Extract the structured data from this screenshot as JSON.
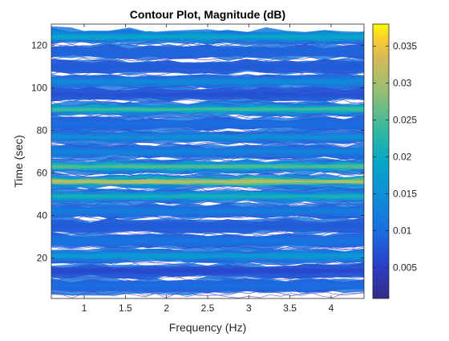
{
  "chart_data": {
    "type": "contour",
    "title": "Contour Plot, Magnitude (dB)",
    "xlabel": "Frequency (Hz)",
    "ylabel": "Time (sec)",
    "xlim": [
      0.6,
      4.4
    ],
    "ylim": [
      1,
      130
    ],
    "xticks": [
      1,
      1.5,
      2,
      2.5,
      3,
      3.5,
      4
    ],
    "xtick_labels": [
      "1",
      "1.5",
      "2",
      "2.5",
      "3",
      "3.5",
      "4"
    ],
    "yticks": [
      20,
      40,
      60,
      80,
      100,
      120
    ],
    "ytick_labels": [
      "20",
      "40",
      "60",
      "80",
      "100",
      "120"
    ],
    "colorbar": {
      "colormap": "parula",
      "range": [
        0.0008,
        0.038
      ],
      "ticks": [
        0.005,
        0.01,
        0.015,
        0.02,
        0.025,
        0.03,
        0.035
      ],
      "tick_labels": [
        "0.005",
        "0.01",
        "0.015",
        "0.02",
        "0.025",
        "0.03",
        "0.035"
      ]
    },
    "grid": false,
    "bands": [
      {
        "time": 124,
        "magnitude": 0.019
      },
      {
        "time": 117,
        "magnitude": 0.009
      },
      {
        "time": 110,
        "magnitude": 0.008
      },
      {
        "time": 103,
        "magnitude": 0.014
      },
      {
        "time": 97,
        "magnitude": 0.007
      },
      {
        "time": 90,
        "magnitude": 0.024
      },
      {
        "time": 83,
        "magnitude": 0.01
      },
      {
        "time": 77,
        "magnitude": 0.015
      },
      {
        "time": 70,
        "magnitude": 0.013
      },
      {
        "time": 63,
        "magnitude": 0.025
      },
      {
        "time": 56,
        "magnitude": 0.031
      },
      {
        "time": 49,
        "magnitude": 0.021
      },
      {
        "time": 42,
        "magnitude": 0.012
      },
      {
        "time": 35,
        "magnitude": 0.008
      },
      {
        "time": 28,
        "magnitude": 0.011
      },
      {
        "time": 21,
        "magnitude": 0.017
      },
      {
        "time": 14,
        "magnitude": 0.006
      },
      {
        "time": 7,
        "magnitude": 0.01
      }
    ]
  }
}
